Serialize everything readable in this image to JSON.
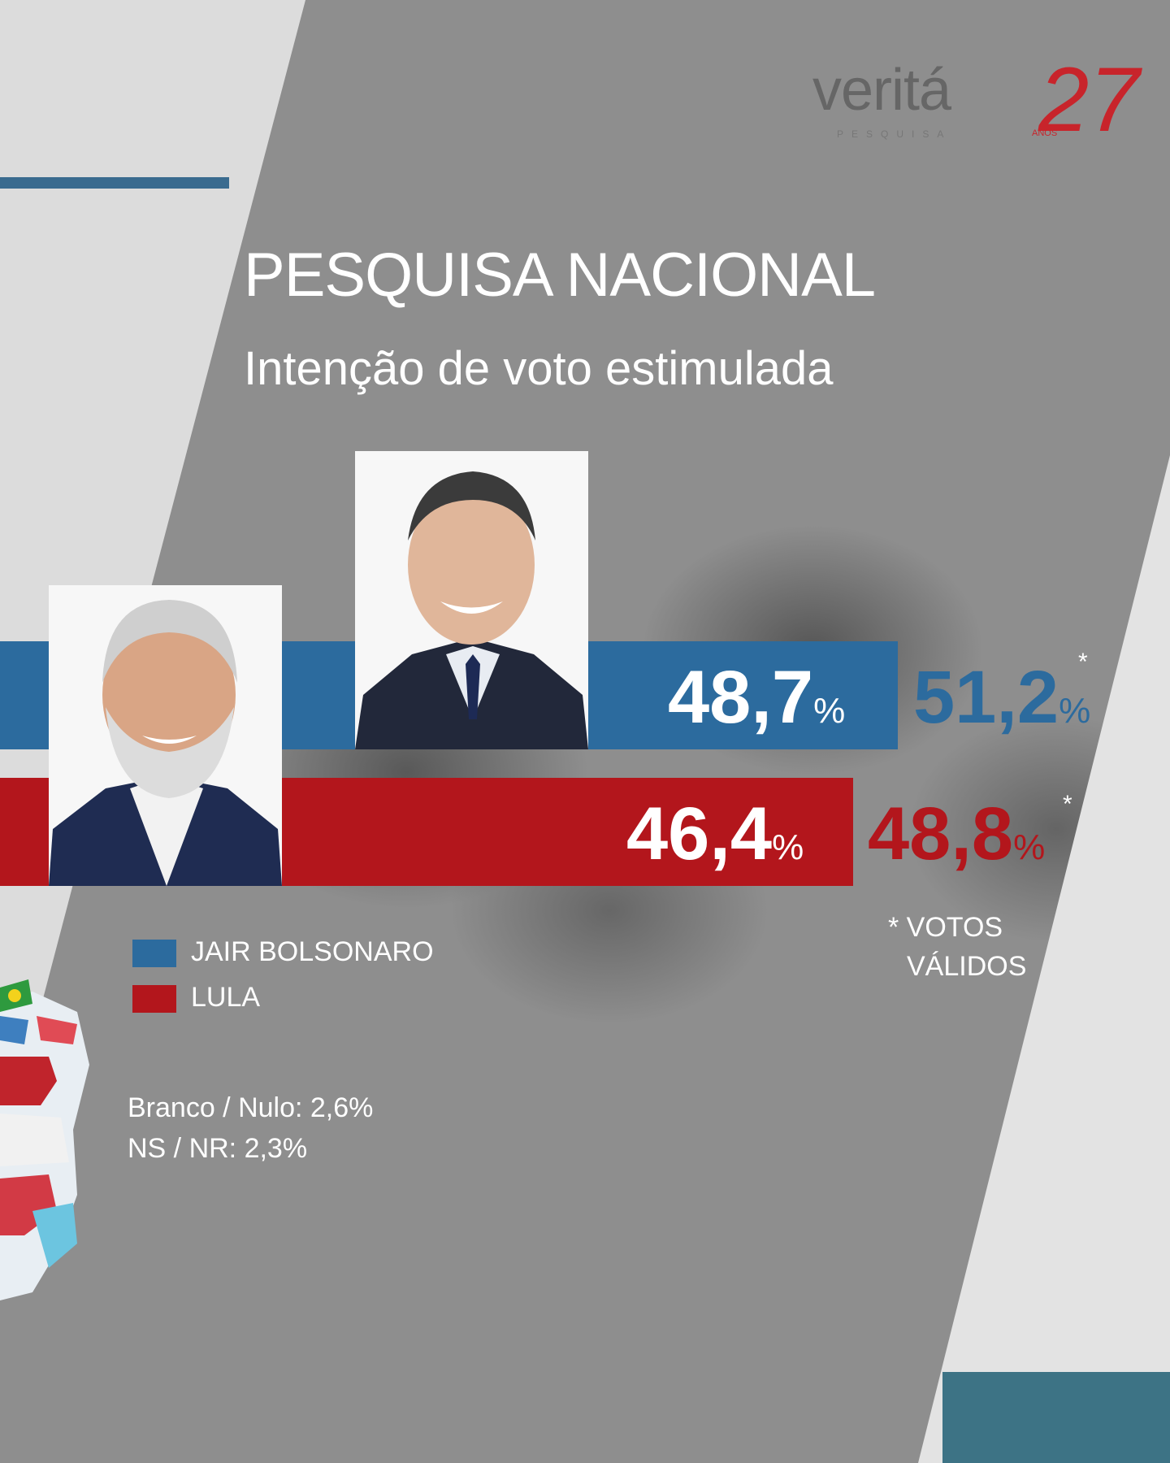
{
  "logo": {
    "brand": "veritá",
    "years": "27",
    "sub": "PESQUISA",
    "anos": "ANOS"
  },
  "title": "PESQUISA NACIONAL",
  "subtitle": "Intenção de voto estimulada",
  "colors": {
    "bolsonaro": "#2c6b9e",
    "lula": "#b3161c",
    "background": "#8e8e8e"
  },
  "chart_data": {
    "type": "bar",
    "orientation": "horizontal",
    "title": "PESQUISA NACIONAL",
    "subtitle": "Intenção de voto estimulada",
    "series": [
      {
        "name": "JAIR BOLSONARO",
        "value": 48.7,
        "valid_votes": 51.2,
        "label": "48,7",
        "valid_label": "51,2"
      },
      {
        "name": "LULA",
        "value": 46.4,
        "valid_votes": 48.8,
        "label": "46,4",
        "valid_label": "48,8"
      }
    ],
    "unit": "%",
    "note": "* VOTOS VÁLIDOS"
  },
  "legend": [
    {
      "label": "JAIR BOLSONARO"
    },
    {
      "label": "LULA"
    }
  ],
  "notes": {
    "votos_line1": "* VOTOS",
    "votos_line2": "VÁLIDOS",
    "branco": "Branco / Nulo: 2,6%",
    "ns": "NS / NR: 2,3%"
  },
  "percent_sign": "%",
  "star": "*"
}
